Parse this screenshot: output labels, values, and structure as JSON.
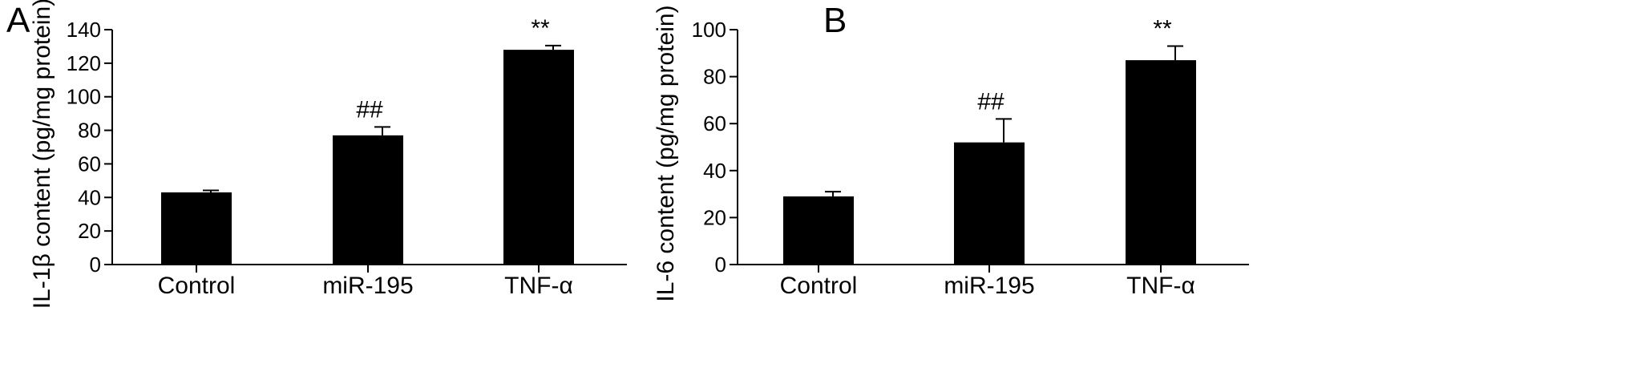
{
  "chart_data": [
    {
      "panel": "A",
      "type": "bar",
      "categories": [
        "Control",
        "miR-195",
        "TNF-α"
      ],
      "values": [
        43,
        77,
        128
      ],
      "errors": [
        1.2,
        5,
        2.5
      ],
      "annotations": [
        "",
        "##",
        "**"
      ],
      "title": "",
      "xlabel": "",
      "ylabel": "IL-1β content (pg/mg protein)",
      "ylim": [
        0,
        140
      ],
      "yticks": [
        0,
        20,
        40,
        60,
        80,
        100,
        120,
        140
      ],
      "grid": false,
      "bar_color": "#000000"
    },
    {
      "panel": "B",
      "type": "bar",
      "categories": [
        "Control",
        "miR-195",
        "TNF-α"
      ],
      "values": [
        29,
        52,
        87
      ],
      "errors": [
        2,
        10,
        6
      ],
      "annotations": [
        "",
        "##",
        "**"
      ],
      "title": "",
      "xlabel": "",
      "ylabel": "IL-6 content (pg/mg protein)",
      "ylim": [
        0,
        100
      ],
      "yticks": [
        0,
        20,
        40,
        60,
        80,
        100
      ],
      "grid": false,
      "bar_color": "#000000"
    }
  ]
}
